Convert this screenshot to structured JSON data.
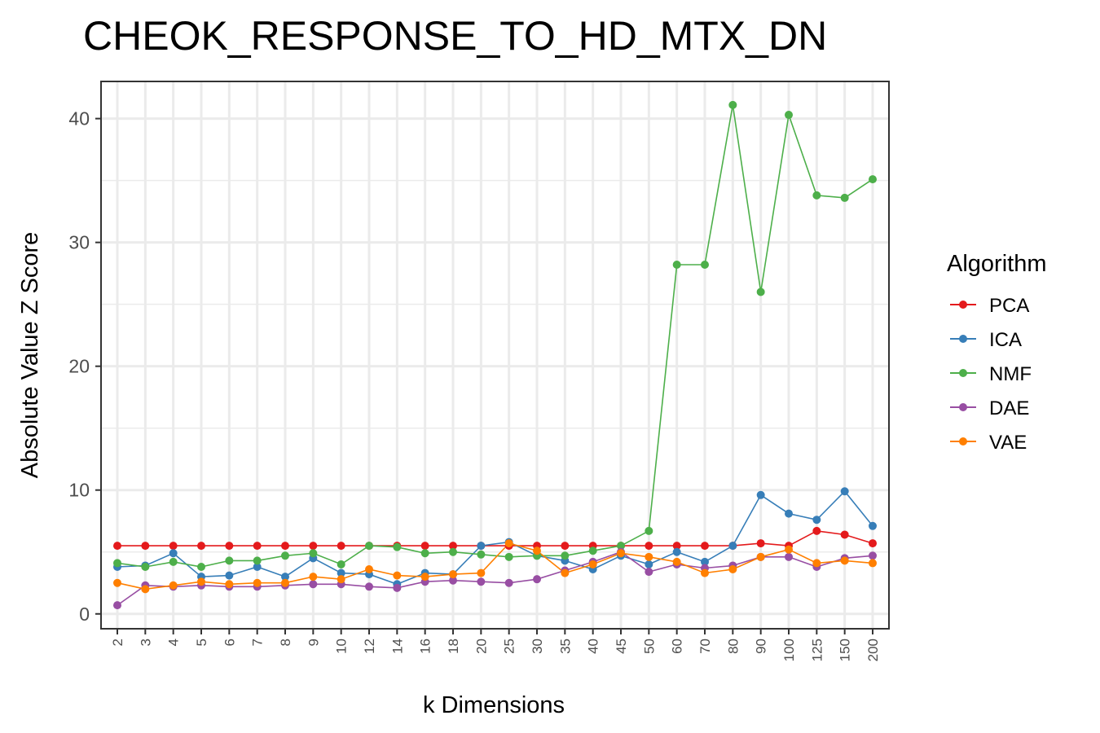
{
  "chart_data": {
    "type": "line",
    "title": "CHEOK_RESPONSE_TO_HD_MTX_DN",
    "xlabel": "k Dimensions",
    "ylabel": "Absolute Value Z Score",
    "categories": [
      "2",
      "3",
      "4",
      "5",
      "6",
      "7",
      "8",
      "9",
      "10",
      "12",
      "14",
      "16",
      "18",
      "20",
      "25",
      "30",
      "35",
      "40",
      "45",
      "50",
      "60",
      "70",
      "80",
      "90",
      "100",
      "125",
      "150",
      "200"
    ],
    "ylim": [
      -1.2,
      43
    ],
    "yticks": [
      0,
      10,
      20,
      30,
      40
    ],
    "grid": true,
    "legend": {
      "title": "Algorithm",
      "position": "right"
    },
    "series": [
      {
        "name": "PCA",
        "color": "#E41A1C",
        "values": [
          5.5,
          5.5,
          5.5,
          5.5,
          5.5,
          5.5,
          5.5,
          5.5,
          5.5,
          5.5,
          5.5,
          5.5,
          5.5,
          5.5,
          5.5,
          5.5,
          5.5,
          5.5,
          5.5,
          5.5,
          5.5,
          5.5,
          5.5,
          5.7,
          5.5,
          6.7,
          6.4,
          5.7
        ]
      },
      {
        "name": "ICA",
        "color": "#377EB8",
        "values": [
          3.8,
          3.9,
          4.9,
          3.0,
          3.1,
          3.8,
          3.0,
          4.5,
          3.3,
          3.2,
          2.4,
          3.3,
          3.2,
          5.5,
          5.8,
          4.7,
          4.3,
          3.6,
          4.7,
          4.0,
          5.0,
          4.2,
          5.5,
          9.6,
          8.1,
          7.6,
          9.9,
          7.1
        ]
      },
      {
        "name": "NMF",
        "color": "#4DAF4A",
        "values": [
          4.1,
          3.8,
          4.2,
          3.8,
          4.3,
          4.3,
          4.7,
          4.9,
          4.0,
          5.5,
          5.4,
          4.9,
          5.0,
          4.8,
          4.6,
          4.7,
          4.7,
          5.1,
          5.5,
          6.7,
          28.2,
          28.2,
          41.1,
          26.0,
          40.3,
          33.8,
          33.6,
          35.1
        ]
      },
      {
        "name": "DAE",
        "color": "#984EA3",
        "values": [
          0.7,
          2.3,
          2.2,
          2.3,
          2.2,
          2.2,
          2.3,
          2.4,
          2.4,
          2.2,
          2.1,
          2.6,
          2.7,
          2.6,
          2.5,
          2.8,
          3.5,
          4.2,
          5.0,
          3.4,
          4.0,
          3.7,
          3.9,
          4.6,
          4.6,
          3.8,
          4.5,
          4.7
        ]
      },
      {
        "name": "VAE",
        "color": "#FF7F00",
        "values": [
          2.5,
          2.0,
          2.3,
          2.6,
          2.4,
          2.5,
          2.5,
          3.0,
          2.8,
          3.6,
          3.1,
          3.0,
          3.2,
          3.3,
          5.7,
          5.1,
          3.3,
          4.0,
          4.9,
          4.6,
          4.2,
          3.3,
          3.6,
          4.6,
          5.2,
          4.1,
          4.3,
          4.1
        ]
      }
    ]
  }
}
